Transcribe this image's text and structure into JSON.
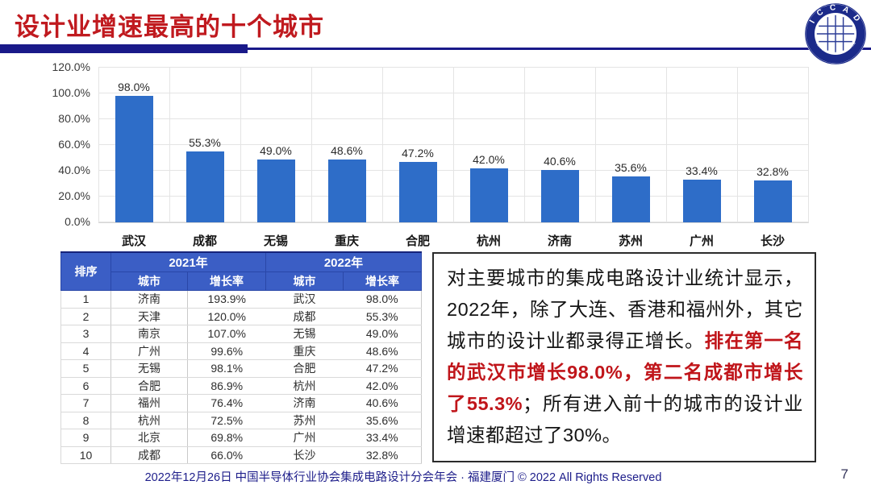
{
  "slide": {
    "title": "设计业增速最高的十个城市",
    "page_number": "7",
    "footer": "2022年12月26日 中国半导体行业协会集成电路设计分会年会 · 福建厦门 © 2022 All Rights Reserved",
    "logo": {
      "top_text": "I C C A D",
      "ring_text": "中国半导体行业协会集成电路设计分会"
    }
  },
  "colors": {
    "title_red": "#C01A1F",
    "bar_blue": "#2E6DC8",
    "table_header_blue": "#3B5EC5",
    "navy": "#191989",
    "highlight_red": "#C0151A"
  },
  "chart_data": {
    "type": "bar",
    "title": "",
    "xlabel": "",
    "ylabel": "",
    "categories": [
      "武汉",
      "成都",
      "无锡",
      "重庆",
      "合肥",
      "杭州",
      "济南",
      "苏州",
      "广州",
      "长沙"
    ],
    "values": [
      98.0,
      55.3,
      49.0,
      48.6,
      47.2,
      42.0,
      40.6,
      35.6,
      33.4,
      32.8
    ],
    "labels": [
      "98.0%",
      "55.3%",
      "49.0%",
      "48.6%",
      "47.2%",
      "42.0%",
      "40.6%",
      "35.6%",
      "33.4%",
      "32.8%"
    ],
    "y_ticks": [
      "0.0%",
      "20.0%",
      "40.0%",
      "60.0%",
      "80.0%",
      "100.0%",
      "120.0%"
    ],
    "y_tick_values": [
      0,
      20,
      40,
      60,
      80,
      100,
      120
    ],
    "ylim": [
      0,
      120
    ],
    "grid": true,
    "legend": "none",
    "bar_color": "#2E6DC8"
  },
  "table": {
    "corner_header": "排序",
    "group_headers": [
      "2021年",
      "2022年"
    ],
    "sub_headers": [
      "城市",
      "增长率",
      "城市",
      "增长率"
    ],
    "rows": [
      [
        "1",
        "济南",
        "193.9%",
        "武汉",
        "98.0%"
      ],
      [
        "2",
        "天津",
        "120.0%",
        "成都",
        "55.3%"
      ],
      [
        "3",
        "南京",
        "107.0%",
        "无锡",
        "49.0%"
      ],
      [
        "4",
        "广州",
        "99.6%",
        "重庆",
        "48.6%"
      ],
      [
        "5",
        "无锡",
        "98.1%",
        "合肥",
        "47.2%"
      ],
      [
        "6",
        "合肥",
        "86.9%",
        "杭州",
        "42.0%"
      ],
      [
        "7",
        "福州",
        "76.4%",
        "济南",
        "40.6%"
      ],
      [
        "8",
        "杭州",
        "72.5%",
        "苏州",
        "35.6%"
      ],
      [
        "9",
        "北京",
        "69.8%",
        "广州",
        "33.4%"
      ],
      [
        "10",
        "成都",
        "66.0%",
        "长沙",
        "32.8%"
      ]
    ]
  },
  "commentary": {
    "segments": [
      {
        "text": "对主要城市的集成电路设计业统计显示，2022年，除了大连、香港和福州外，其它城市的设计业都录得正增长。",
        "style": "normal"
      },
      {
        "text": "排在第一名的武汉市增长98.0%，第二名成都市增长了55.3%",
        "style": "red"
      },
      {
        "text": "；所有进入前十的城市的设计业增速都超过了30%。",
        "style": "normal"
      }
    ]
  }
}
